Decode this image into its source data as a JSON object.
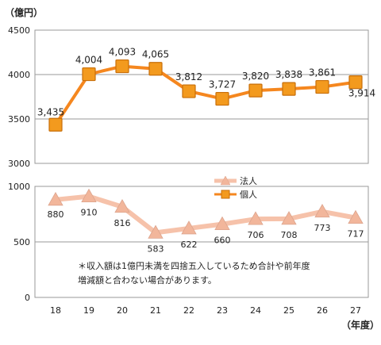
{
  "chart_data": {
    "type": "line",
    "y_unit": "（億円）",
    "x_unit": "（年度）",
    "categories": [
      "18",
      "19",
      "20",
      "21",
      "22",
      "23",
      "24",
      "25",
      "26",
      "27"
    ],
    "series": [
      {
        "name": "個人",
        "marker": "square",
        "color": "#f39a1e",
        "values": [
          3435,
          4004,
          4093,
          4065,
          3812,
          3727,
          3820,
          3838,
          3861,
          3914
        ],
        "labels": [
          "3,435",
          "4,004",
          "4,093",
          "4,065",
          "3,812",
          "3,727",
          "3,820",
          "3,838",
          "3,861",
          "3,914"
        ],
        "axis": {
          "min": 3000,
          "max": 4500,
          "ticks": [
            "3000",
            "3500",
            "4000",
            "4500"
          ]
        }
      },
      {
        "name": "法人",
        "marker": "triangle",
        "color": "#f2b69b",
        "values": [
          880,
          910,
          816,
          583,
          622,
          660,
          706,
          708,
          773,
          717
        ],
        "labels": [
          "880",
          "910",
          "816",
          "583",
          "622",
          "660",
          "706",
          "708",
          "773",
          "717"
        ],
        "axis": {
          "min": 0,
          "max": 1000,
          "ticks": [
            "0",
            "500",
            "1000"
          ]
        }
      }
    ],
    "legend_position": "center-right",
    "gridlines": "major-y",
    "note_lines": [
      "＊収入額は1億円未満を四捨五入しているため合計や前年度",
      "増減額と合わない場合があります。"
    ]
  }
}
